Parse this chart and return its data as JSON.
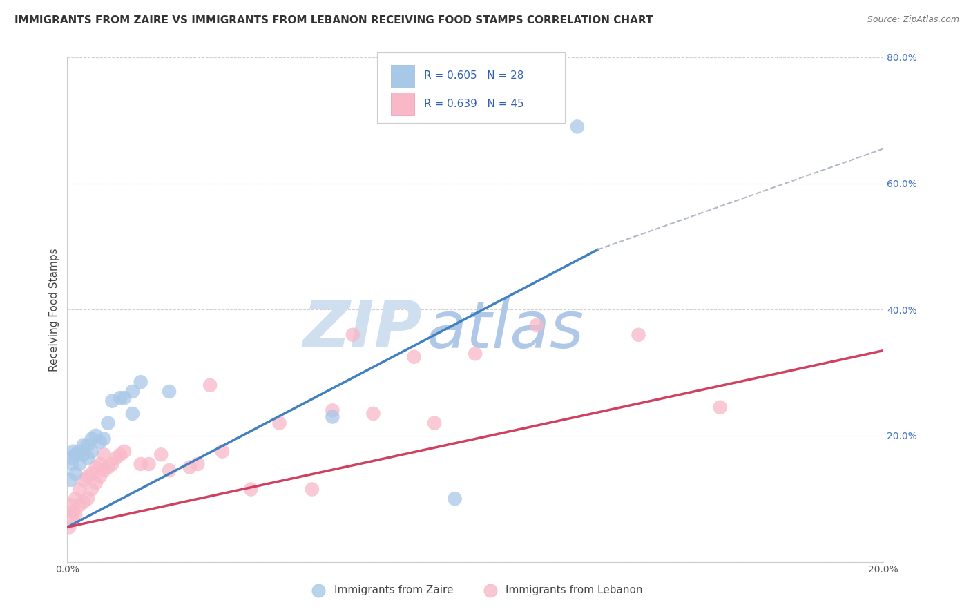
{
  "title": "IMMIGRANTS FROM ZAIRE VS IMMIGRANTS FROM LEBANON RECEIVING FOOD STAMPS CORRELATION CHART",
  "source": "Source: ZipAtlas.com",
  "ylabel": "Receiving Food Stamps",
  "xlim": [
    0.0,
    0.2
  ],
  "ylim": [
    0.0,
    0.8
  ],
  "xticks": [
    0.0,
    0.04,
    0.08,
    0.12,
    0.16,
    0.2
  ],
  "yticks": [
    0.0,
    0.2,
    0.4,
    0.6,
    0.8
  ],
  "xtick_labels": [
    "0.0%",
    "",
    "",
    "",
    "",
    "20.0%"
  ],
  "ytick_labels": [
    "",
    "20.0%",
    "40.0%",
    "60.0%",
    "80.0%"
  ],
  "legend_R_zaire": "R = 0.605",
  "legend_N_zaire": "N = 28",
  "legend_R_lebanon": "R = 0.639",
  "legend_N_lebanon": "N = 45",
  "legend_label_zaire": "Immigrants from Zaire",
  "legend_label_lebanon": "Immigrants from Lebanon",
  "color_zaire": "#a8c8e8",
  "color_lebanon": "#f8b8c8",
  "color_trendline_zaire": "#4080c0",
  "color_trendline_lebanon": "#d04060",
  "color_dashed": "#b0b8c8",
  "watermark_zip": "ZIP",
  "watermark_atlas": "atlas",
  "watermark_color_zip": "#d0dff0",
  "watermark_color_atlas": "#b0c8e8",
  "background_color": "#ffffff",
  "grid_color": "#d0d0d0",
  "trendline_zaire_x0": 0.0,
  "trendline_zaire_y0": 0.055,
  "trendline_zaire_x1": 0.13,
  "trendline_zaire_y1": 0.495,
  "trendline_zaire_dash_x1": 0.2,
  "trendline_zaire_dash_y1": 0.655,
  "trendline_lebanon_x0": 0.0,
  "trendline_lebanon_y0": 0.055,
  "trendline_lebanon_x1": 0.2,
  "trendline_lebanon_y1": 0.335,
  "zaire_x": [
    0.0008,
    0.001,
    0.0012,
    0.0015,
    0.002,
    0.002,
    0.003,
    0.003,
    0.004,
    0.004,
    0.005,
    0.005,
    0.006,
    0.006,
    0.007,
    0.008,
    0.009,
    0.01,
    0.011,
    0.013,
    0.014,
    0.016,
    0.016,
    0.018,
    0.025,
    0.065,
    0.095,
    0.125
  ],
  "zaire_y": [
    0.13,
    0.165,
    0.155,
    0.175,
    0.14,
    0.17,
    0.155,
    0.175,
    0.17,
    0.185,
    0.165,
    0.185,
    0.195,
    0.175,
    0.2,
    0.19,
    0.195,
    0.22,
    0.255,
    0.26,
    0.26,
    0.235,
    0.27,
    0.285,
    0.27,
    0.23,
    0.1,
    0.69
  ],
  "lebanon_x": [
    0.0005,
    0.001,
    0.001,
    0.0015,
    0.002,
    0.002,
    0.003,
    0.003,
    0.004,
    0.004,
    0.005,
    0.005,
    0.006,
    0.006,
    0.007,
    0.007,
    0.008,
    0.008,
    0.009,
    0.009,
    0.01,
    0.011,
    0.012,
    0.013,
    0.014,
    0.018,
    0.02,
    0.023,
    0.025,
    0.03,
    0.032,
    0.035,
    0.038,
    0.045,
    0.052,
    0.06,
    0.065,
    0.07,
    0.075,
    0.085,
    0.09,
    0.1,
    0.115,
    0.14,
    0.16
  ],
  "lebanon_y": [
    0.055,
    0.07,
    0.09,
    0.08,
    0.075,
    0.1,
    0.09,
    0.115,
    0.095,
    0.13,
    0.1,
    0.135,
    0.115,
    0.14,
    0.125,
    0.15,
    0.135,
    0.155,
    0.145,
    0.17,
    0.15,
    0.155,
    0.165,
    0.17,
    0.175,
    0.155,
    0.155,
    0.17,
    0.145,
    0.15,
    0.155,
    0.28,
    0.175,
    0.115,
    0.22,
    0.115,
    0.24,
    0.36,
    0.235,
    0.325,
    0.22,
    0.33,
    0.375,
    0.36,
    0.245
  ]
}
